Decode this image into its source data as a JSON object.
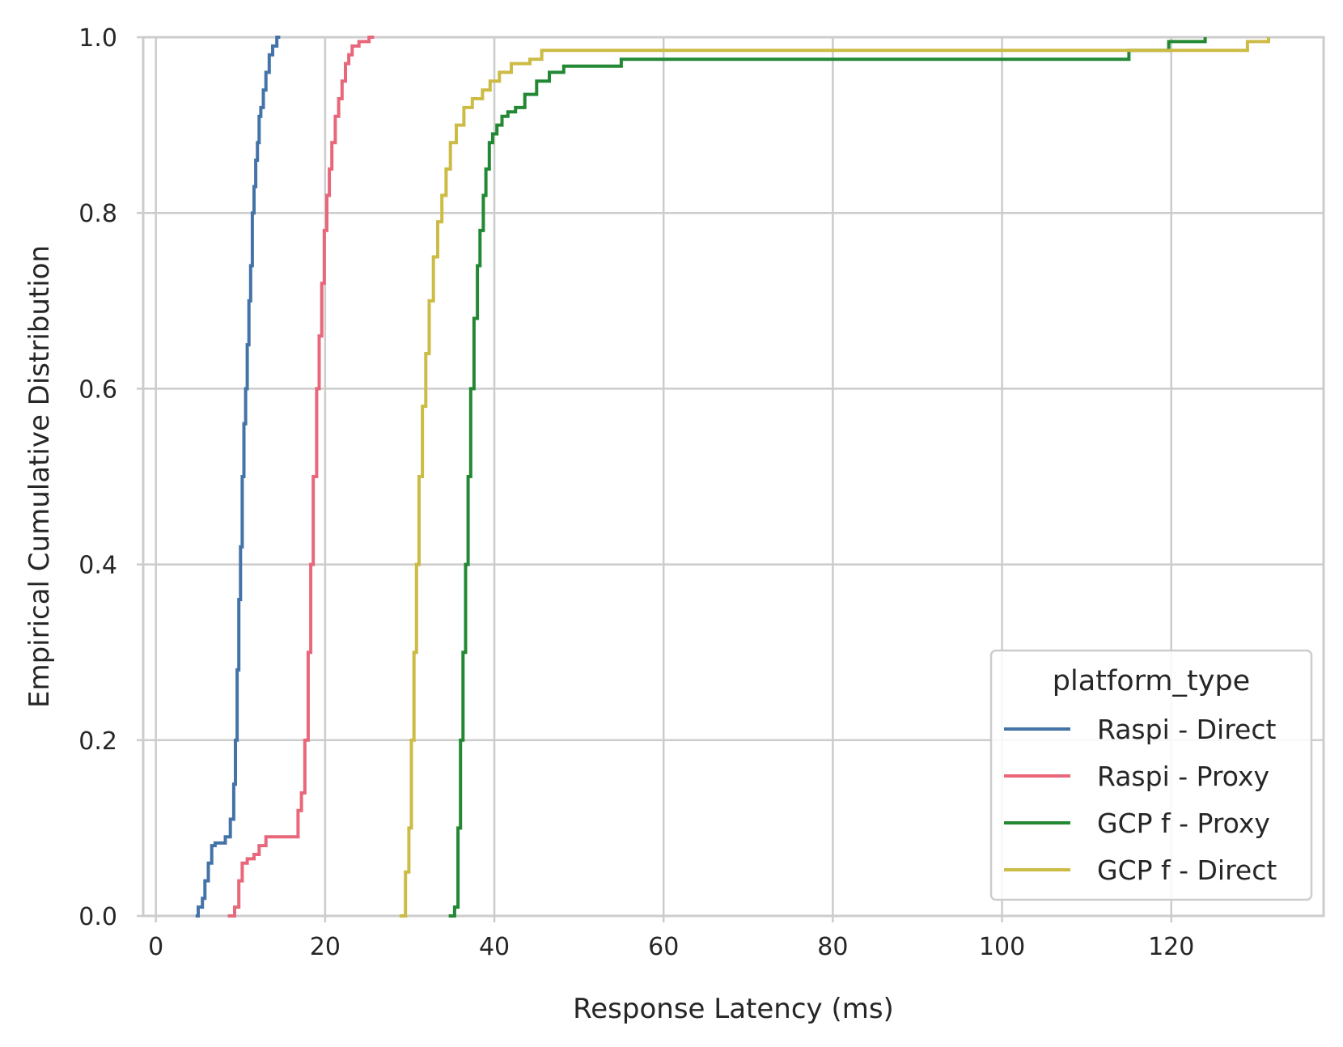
{
  "chart_data": {
    "type": "line",
    "xlabel": "Response Latency (ms)",
    "ylabel": "Empirical Cumulative Distribution",
    "xlim": [
      -1.5,
      138
    ],
    "ylim": [
      0,
      1
    ],
    "xticks": [
      0,
      20,
      40,
      60,
      80,
      100,
      120
    ],
    "yticks": [
      0.0,
      0.2,
      0.4,
      0.6,
      0.8,
      1.0
    ],
    "xtick_labels": [
      "0",
      "20",
      "40",
      "60",
      "80",
      "100",
      "120"
    ],
    "ytick_labels": [
      "0.0",
      "0.2",
      "0.4",
      "0.6",
      "0.8",
      "1.0"
    ],
    "grid": true,
    "legend": {
      "title": "platform_type",
      "placement": "lower-right"
    },
    "series": [
      {
        "name": "Raspi - Direct",
        "color": "#4473a8",
        "x": [
          4.7,
          5.0,
          5.5,
          5.8,
          6.2,
          6.6,
          7.0,
          7.3,
          8.2,
          8.8,
          9.2,
          9.4,
          9.6,
          9.8,
          10.0,
          10.2,
          10.4,
          10.6,
          10.8,
          11.0,
          11.2,
          11.4,
          11.6,
          11.8,
          12.0,
          12.2,
          12.4,
          12.7,
          13.0,
          13.4,
          13.8,
          14.3,
          14.7
        ],
        "y": [
          0.0,
          0.01,
          0.02,
          0.04,
          0.06,
          0.08,
          0.083,
          0.083,
          0.09,
          0.11,
          0.15,
          0.2,
          0.28,
          0.36,
          0.42,
          0.5,
          0.56,
          0.6,
          0.65,
          0.7,
          0.74,
          0.8,
          0.83,
          0.86,
          0.88,
          0.91,
          0.92,
          0.94,
          0.96,
          0.98,
          0.99,
          1.0,
          1.0
        ]
      },
      {
        "name": "Raspi - Proxy",
        "color": "#e8677a",
        "x": [
          8.5,
          9.3,
          9.8,
          10.2,
          10.8,
          11.6,
          12.2,
          13.0,
          16.3,
          16.8,
          17.2,
          17.6,
          18.0,
          18.3,
          18.6,
          19.0,
          19.3,
          19.6,
          19.9,
          20.2,
          20.5,
          20.8,
          21.2,
          21.6,
          22.0,
          22.4,
          22.8,
          23.2,
          24.0,
          25.2,
          25.8
        ],
        "y": [
          0.0,
          0.01,
          0.04,
          0.06,
          0.065,
          0.07,
          0.08,
          0.09,
          0.09,
          0.12,
          0.14,
          0.2,
          0.3,
          0.4,
          0.5,
          0.6,
          0.66,
          0.72,
          0.78,
          0.82,
          0.85,
          0.88,
          0.91,
          0.93,
          0.95,
          0.97,
          0.98,
          0.99,
          0.995,
          1.0,
          1.0
        ]
      },
      {
        "name": "GCP f - Proxy",
        "color": "#228833",
        "x": [
          34.6,
          35.3,
          35.7,
          36.0,
          36.3,
          36.6,
          36.9,
          37.2,
          37.6,
          38.0,
          38.3,
          38.7,
          39.0,
          39.4,
          39.8,
          40.3,
          40.9,
          41.6,
          42.5,
          43.6,
          45.0,
          46.5,
          48.2,
          55.0,
          70.0,
          100.0,
          115.0,
          118.0,
          119.7,
          124.0
        ],
        "y": [
          0.0,
          0.01,
          0.1,
          0.2,
          0.3,
          0.4,
          0.5,
          0.6,
          0.68,
          0.74,
          0.78,
          0.82,
          0.85,
          0.88,
          0.89,
          0.9,
          0.91,
          0.915,
          0.92,
          0.935,
          0.95,
          0.96,
          0.967,
          0.975,
          0.975,
          0.975,
          0.985,
          0.985,
          0.995,
          1.0
        ]
      },
      {
        "name": "GCP f - Direct",
        "color": "#ccbb44",
        "x": [
          28.8,
          29.5,
          29.9,
          30.2,
          30.5,
          30.8,
          31.1,
          31.5,
          31.9,
          32.3,
          32.8,
          33.3,
          33.8,
          34.3,
          34.8,
          35.5,
          36.4,
          37.4,
          38.6,
          39.5,
          40.6,
          42.0,
          44.2,
          45.6,
          46.0,
          60.0,
          90.0,
          115.0,
          129.0,
          131.5
        ],
        "y": [
          0.0,
          0.05,
          0.1,
          0.2,
          0.3,
          0.4,
          0.5,
          0.58,
          0.64,
          0.7,
          0.75,
          0.79,
          0.82,
          0.85,
          0.88,
          0.9,
          0.92,
          0.93,
          0.94,
          0.95,
          0.96,
          0.97,
          0.975,
          0.985,
          0.985,
          0.985,
          0.985,
          0.985,
          0.995,
          1.0
        ]
      }
    ]
  }
}
